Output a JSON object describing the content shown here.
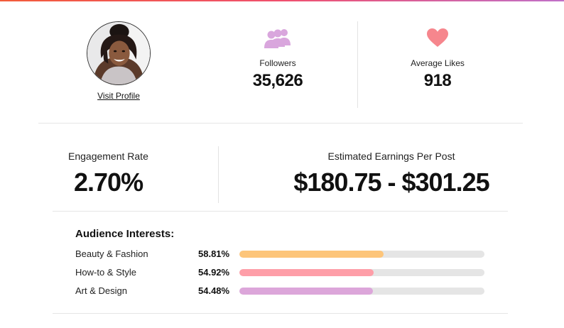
{
  "profile": {
    "visit_label": "Visit Profile"
  },
  "stats": {
    "followers": {
      "icon": "people-icon",
      "label": "Followers",
      "value": "35,626",
      "color": "#d9a6dd"
    },
    "average_likes": {
      "icon": "heart-icon",
      "label": "Average Likes",
      "value": "918",
      "color": "#f6868d"
    }
  },
  "engagement": {
    "label": "Engagement Rate",
    "value": "2.70%"
  },
  "earnings": {
    "label": "Estimated Earnings Per Post",
    "value": "$180.75 - $301.25"
  },
  "interests": {
    "title": "Audience Interests:",
    "items": [
      {
        "name": "Beauty & Fashion",
        "percent_label": "58.81%",
        "percent": 58.81,
        "color": "#fdc57a"
      },
      {
        "name": "How-to & Style",
        "percent_label": "54.92%",
        "percent": 54.92,
        "color": "#fe9ea8"
      },
      {
        "name": "Art & Design",
        "percent_label": "54.48%",
        "percent": 54.48,
        "color": "#dca6da"
      }
    ],
    "track_color": "#e5e5e5"
  },
  "colors": {
    "top_accent_start": "#f25c3a",
    "top_accent_end": "#c070c8",
    "divider": "#e6e6e6"
  }
}
